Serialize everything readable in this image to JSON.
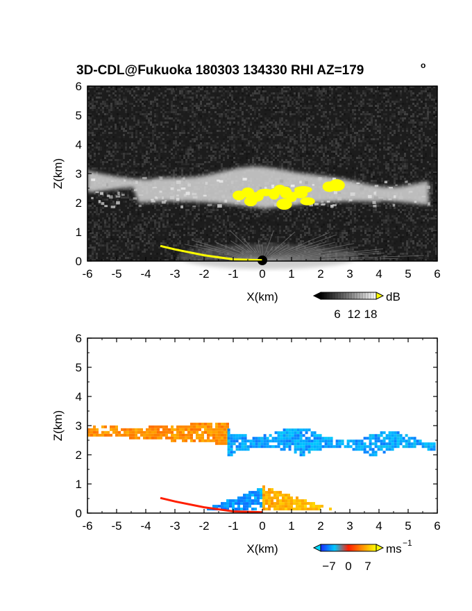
{
  "title": "3D-CDL@Fukuoka 180303 134330 RHI AZ=179",
  "title_superscript": "o",
  "chart_data": [
    {
      "type": "heatmap",
      "panel": "top",
      "quantity": "backscatter intensity",
      "xlabel": "X(km)",
      "ylabel": "Z(km)",
      "xlim": [
        -6,
        6
      ],
      "ylim": [
        0,
        6
      ],
      "xticks": [
        "-6",
        "-5",
        "-4",
        "-3",
        "-2",
        "-1",
        "0",
        "1",
        "2",
        "3",
        "4",
        "5",
        "6"
      ],
      "yticks": [
        "0",
        "1",
        "2",
        "3",
        "4",
        "5",
        "6"
      ],
      "background_color": "#1c1c1c",
      "colorbar": {
        "unit": "dB",
        "ticks": [
          "6",
          "12",
          "18"
        ],
        "range": [
          0,
          20
        ],
        "colormap": "grayscale",
        "over_color": "#ffff00"
      },
      "features": [
        {
          "kind": "cloud-layer",
          "x_range": [
            -6,
            5.7
          ],
          "z_bottom": 1.8,
          "z_top": 3.1,
          "level": "high"
        },
        {
          "kind": "strong-echo",
          "color": "#ffff00",
          "x_range": [
            -0.9,
            2.7
          ],
          "z_range": [
            1.9,
            2.7
          ]
        },
        {
          "kind": "near-ground-fan",
          "x_range": [
            -1.5,
            2.0
          ],
          "z_top": 0.8
        },
        {
          "kind": "ground-return",
          "color": "#ffff00",
          "points": [
            [
              -3.5,
              0.52
            ],
            [
              -3.0,
              0.4
            ],
            [
              -2.0,
              0.2
            ],
            [
              -1.0,
              0.06
            ],
            [
              0,
              0.03
            ]
          ]
        }
      ]
    },
    {
      "type": "heatmap",
      "panel": "bottom",
      "quantity": "Doppler velocity",
      "xlabel": "X(km)",
      "ylabel": "Z(km)",
      "xlim": [
        -6,
        6
      ],
      "ylim": [
        0,
        6
      ],
      "xticks": [
        "-6",
        "-5",
        "-4",
        "-3",
        "-2",
        "-1",
        "0",
        "1",
        "2",
        "3",
        "4",
        "5",
        "6"
      ],
      "yticks": [
        "0",
        "1",
        "2",
        "3",
        "4",
        "5",
        "6"
      ],
      "colorbar": {
        "unit": "ms",
        "unit_superscript": "−1",
        "ticks": [
          "−7",
          "0",
          "7"
        ],
        "range": [
          -10,
          10
        ],
        "colormap": "blue-cyan-red-yellow"
      },
      "features": [
        {
          "kind": "cloud-layer",
          "x_range": [
            -6,
            -1.2
          ],
          "z_bottom": 2.4,
          "z_top": 3.1,
          "velocity_ms": 5
        },
        {
          "kind": "cloud-layer",
          "x_range": [
            -1.2,
            5.9
          ],
          "z_bottom": 1.7,
          "z_top": 2.9,
          "velocity_ms": -6
        },
        {
          "kind": "low-echo",
          "x_range": [
            -2.0,
            0
          ],
          "z_bottom": 0.1,
          "z_top": 0.95,
          "velocity_ms": -6
        },
        {
          "kind": "low-echo",
          "x_range": [
            0,
            2.3
          ],
          "z_bottom": 0.1,
          "z_top": 0.95,
          "velocity_ms": 6
        },
        {
          "kind": "ground-return",
          "color": "#ff1e00",
          "points": [
            [
              -3.5,
              0.52
            ],
            [
              -3.0,
              0.4
            ],
            [
              -2.0,
              0.2
            ],
            [
              -1.0,
              0.06
            ],
            [
              0,
              0.03
            ]
          ]
        }
      ]
    }
  ]
}
